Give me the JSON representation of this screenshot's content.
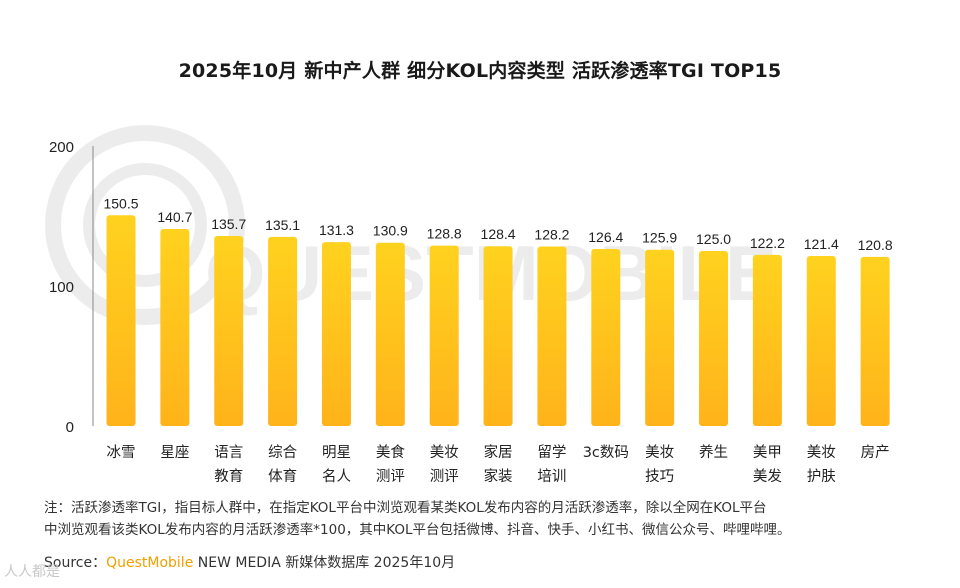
{
  "title": "2025年10月 新中产人群 细分KOL内容类型 活跃渗透率TGI TOP15",
  "watermark": "QUESTMOBILE",
  "chart_data": {
    "type": "bar",
    "title": "2025年10月 新中产人群 细分KOL内容类型 活跃渗透率TGI TOP15",
    "xlabel": "",
    "ylabel": "",
    "ylim": [
      0,
      200
    ],
    "yticks": [
      "0",
      "100",
      "200"
    ],
    "categories": [
      [
        "冰雪"
      ],
      [
        "星座"
      ],
      [
        "语言",
        "教育"
      ],
      [
        "综合",
        "体育"
      ],
      [
        "明星",
        "名人"
      ],
      [
        "美食",
        "测评"
      ],
      [
        "美妆",
        "测评"
      ],
      [
        "家居",
        "家装"
      ],
      [
        "留学",
        "培训"
      ],
      [
        "3c数码"
      ],
      [
        "美妆",
        "技巧"
      ],
      [
        "养生"
      ],
      [
        "美甲",
        "美发"
      ],
      [
        "美妆",
        "护肤"
      ],
      [
        "房产"
      ]
    ],
    "values": [
      150.5,
      140.7,
      135.7,
      135.1,
      131.3,
      130.9,
      128.8,
      128.4,
      128.2,
      126.4,
      125.9,
      125.0,
      122.2,
      121.4,
      120.8
    ],
    "value_labels": [
      "150.5",
      "140.7",
      "135.7",
      "135.1",
      "131.3",
      "130.9",
      "128.8",
      "128.4",
      "128.2",
      "126.4",
      "125.9",
      "125.0",
      "122.2",
      "121.4",
      "120.8"
    ],
    "grid": false,
    "legend": "none",
    "colors": {
      "bar_top": "#ffd21f",
      "bar_bottom": "#ffb31a",
      "axis": "#888888"
    }
  },
  "note": {
    "line1": "注：活跃渗透率TGI，指目标人群中，在指定KOL平台中浏览观看某类KOL发布内容的月活跃渗透率，除以全网在KOL平台",
    "line2": "中浏览观看该类KOL发布内容的月活跃渗透率*100，其中KOL平台包括微博、抖音、快手、小红书、微信公众号、哔哩哔哩。"
  },
  "source": {
    "prefix": "Source：",
    "brand": "QuestMobile",
    "suffix": " NEW MEDIA 新媒体数据库 2025年10月"
  },
  "corner_logo": "人人都是"
}
